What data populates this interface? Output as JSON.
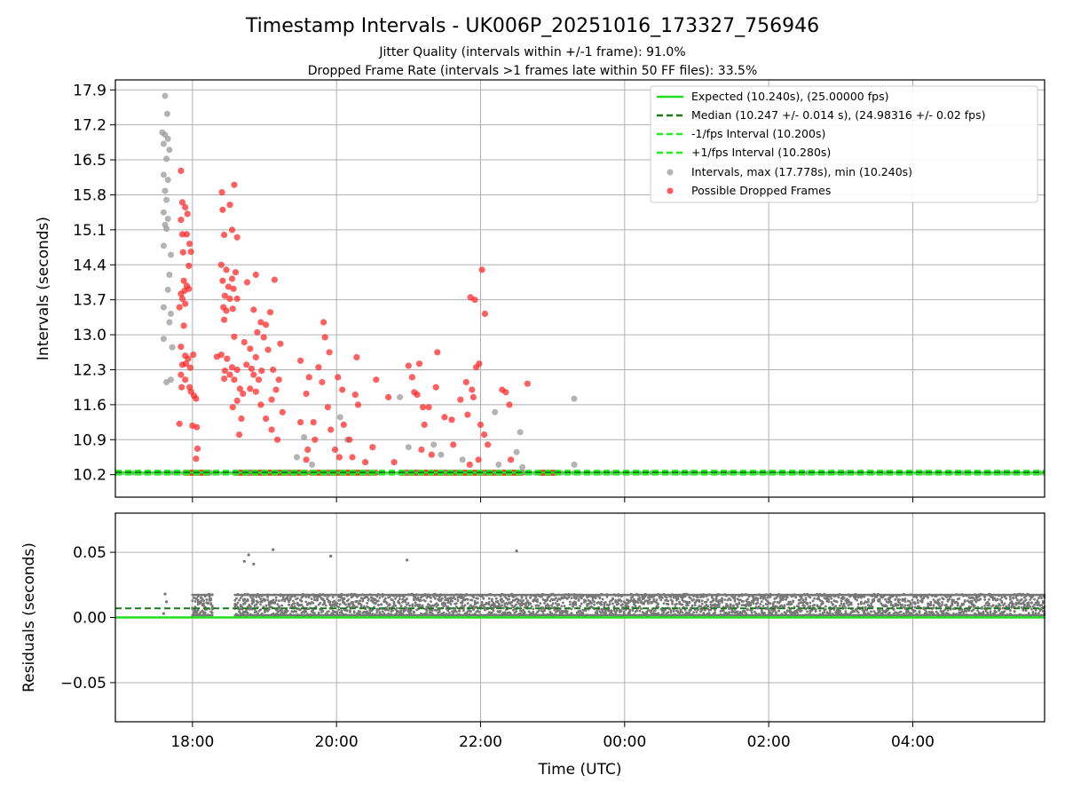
{
  "figure": {
    "title": "Timestamp Intervals - UK006P_20251016_173327_756946",
    "subtitle_line1": "Jitter Quality (intervals within +/-1 frame): 91.0%",
    "subtitle_line2": "Dropped Frame Rate (intervals >1 frames late within 50 FF files): 33.5%"
  },
  "colors": {
    "expected": "#22dd22",
    "median": "#1a7a1a",
    "interval_band": "#22ee22",
    "intervals_gray": "#9a9a9a",
    "dropped_red": "#ff2222",
    "residuals": "#777777",
    "grid": "#b0b0b0"
  },
  "chart_data": [
    {
      "type": "scatter",
      "xlabel": "",
      "ylabel": "Intervals (seconds)",
      "x_unit": "hours since 00:00 UTC of start day",
      "xlim": [
        16.93,
        29.83
      ],
      "ylim": [
        9.75,
        18.1
      ],
      "yticks": [
        "10.2",
        "10.9",
        "11.6",
        "12.3",
        "13.0",
        "13.7",
        "14.4",
        "15.1",
        "15.8",
        "16.5",
        "17.2",
        "17.9"
      ],
      "grid": true,
      "legend_position": "top-right",
      "legend": [
        "Expected (10.240s), (25.00000 fps)",
        "Median (10.247 +/- 0.014 s), (24.98316 +/- 0.02 fps)",
        "-1/fps Interval (10.200s)",
        "+1/fps Interval (10.280s)",
        "Intervals, max (17.778s), min (10.240s)",
        "Possible Dropped Frames"
      ],
      "reference_lines": {
        "expected": 10.24,
        "median": 10.247,
        "minus_one_fps": 10.2,
        "plus_one_fps": 10.28
      },
      "series": [
        {
          "name": "Intervals, max (17.778s), min (10.240s)",
          "points": [
            [
              17.62,
              17.78
            ],
            [
              17.65,
              17.42
            ],
            [
              17.58,
              17.05
            ],
            [
              17.62,
              17.0
            ],
            [
              17.66,
              16.92
            ],
            [
              17.6,
              16.82
            ],
            [
              17.68,
              16.7
            ],
            [
              17.64,
              16.52
            ],
            [
              17.6,
              16.2
            ],
            [
              17.66,
              16.1
            ],
            [
              17.62,
              15.88
            ],
            [
              17.64,
              15.7
            ],
            [
              17.6,
              15.45
            ],
            [
              17.66,
              15.32
            ],
            [
              17.62,
              15.2
            ],
            [
              17.64,
              15.12
            ],
            [
              17.6,
              14.78
            ],
            [
              17.7,
              14.6
            ],
            [
              17.68,
              14.2
            ],
            [
              17.66,
              13.9
            ],
            [
              17.6,
              13.55
            ],
            [
              17.7,
              13.42
            ],
            [
              17.68,
              13.25
            ],
            [
              17.6,
              12.92
            ],
            [
              17.72,
              12.75
            ],
            [
              17.7,
              12.1
            ],
            [
              17.64,
              12.05
            ],
            [
              19.45,
              10.55
            ],
            [
              19.55,
              10.95
            ],
            [
              19.66,
              10.4
            ],
            [
              20.05,
              11.35
            ],
            [
              20.15,
              10.9
            ],
            [
              20.88,
              11.75
            ],
            [
              21.0,
              10.75
            ],
            [
              21.35,
              10.8
            ],
            [
              21.45,
              10.6
            ],
            [
              21.75,
              10.5
            ],
            [
              22.2,
              11.45
            ],
            [
              22.25,
              10.4
            ],
            [
              22.55,
              11.05
            ],
            [
              22.5,
              10.65
            ],
            [
              22.58,
              10.35
            ],
            [
              23.3,
              11.72
            ],
            [
              23.3,
              10.4
            ]
          ]
        },
        {
          "name": "Possible Dropped Frames",
          "points": [
            [
              17.84,
              16.28
            ],
            [
              17.86,
              15.65
            ],
            [
              17.9,
              15.55
            ],
            [
              17.93,
              15.42
            ],
            [
              17.84,
              15.3
            ],
            [
              17.86,
              15.01
            ],
            [
              17.92,
              15.01
            ],
            [
              17.96,
              14.82
            ],
            [
              17.87,
              14.65
            ],
            [
              17.98,
              14.66
            ],
            [
              17.95,
              14.38
            ],
            [
              17.88,
              14.08
            ],
            [
              17.92,
              13.98
            ],
            [
              17.84,
              13.82
            ],
            [
              17.89,
              13.88
            ],
            [
              17.95,
              13.92
            ],
            [
              17.86,
              13.72
            ],
            [
              17.9,
              13.62
            ],
            [
              17.82,
              13.55
            ],
            [
              17.88,
              13.18
            ],
            [
              17.84,
              12.76
            ],
            [
              17.9,
              12.58
            ],
            [
              17.94,
              12.52
            ],
            [
              17.86,
              12.4
            ],
            [
              17.91,
              12.42
            ],
            [
              17.84,
              12.2
            ],
            [
              17.97,
              12.34
            ],
            [
              17.9,
              12.1
            ],
            [
              17.85,
              11.95
            ],
            [
              17.98,
              11.86
            ],
            [
              18.02,
              11.78
            ],
            [
              17.96,
              11.95
            ],
            [
              18.05,
              11.72
            ],
            [
              18.01,
              12.6
            ],
            [
              17.82,
              11.22
            ],
            [
              18.0,
              11.18
            ],
            [
              18.06,
              11.15
            ],
            [
              18.07,
              10.72
            ],
            [
              18.05,
              10.52
            ],
            [
              18.34,
              12.56
            ],
            [
              18.41,
              15.85
            ],
            [
              18.58,
              16.0
            ],
            [
              18.52,
              15.6
            ],
            [
              18.42,
              15.5
            ],
            [
              18.55,
              15.1
            ],
            [
              18.44,
              15.0
            ],
            [
              18.62,
              14.95
            ],
            [
              18.4,
              14.4
            ],
            [
              18.47,
              14.3
            ],
            [
              18.6,
              14.25
            ],
            [
              18.55,
              14.12
            ],
            [
              18.42,
              14.08
            ],
            [
              18.5,
              13.96
            ],
            [
              18.57,
              13.92
            ],
            [
              18.45,
              13.78
            ],
            [
              18.62,
              13.72
            ],
            [
              18.52,
              13.72
            ],
            [
              18.43,
              13.55
            ],
            [
              18.56,
              13.52
            ],
            [
              18.47,
              13.48
            ],
            [
              18.44,
              13.3
            ],
            [
              18.58,
              12.96
            ],
            [
              18.4,
              12.6
            ],
            [
              18.48,
              12.52
            ],
            [
              18.55,
              12.35
            ],
            [
              18.45,
              12.28
            ],
            [
              18.62,
              12.3
            ],
            [
              18.52,
              12.2
            ],
            [
              18.44,
              12.12
            ],
            [
              18.58,
              12.1
            ],
            [
              18.66,
              11.92
            ],
            [
              18.7,
              11.82
            ],
            [
              18.62,
              11.68
            ],
            [
              18.56,
              11.55
            ],
            [
              18.68,
              11.32
            ],
            [
              18.65,
              11.0
            ],
            [
              18.72,
              12.85
            ],
            [
              18.8,
              12.72
            ],
            [
              18.88,
              12.55
            ],
            [
              18.75,
              12.4
            ],
            [
              18.82,
              12.32
            ],
            [
              18.85,
              12.2
            ],
            [
              18.92,
              12.1
            ],
            [
              18.96,
              12.28
            ],
            [
              18.8,
              11.92
            ],
            [
              18.88,
              11.86
            ],
            [
              18.95,
              11.6
            ],
            [
              18.76,
              14.05
            ],
            [
              18.88,
              14.2
            ],
            [
              18.9,
              13.05
            ],
            [
              18.99,
              12.95
            ],
            [
              19.05,
              12.7
            ],
            [
              19.12,
              12.3
            ],
            [
              19.2,
              12.1
            ],
            [
              19.16,
              11.9
            ],
            [
              19.1,
              11.7
            ],
            [
              19.02,
              11.32
            ],
            [
              19.1,
              11.1
            ],
            [
              19.18,
              10.9
            ],
            [
              19.14,
              14.1
            ],
            [
              18.85,
              13.5
            ],
            [
              18.95,
              13.25
            ],
            [
              19.02,
              13.2
            ],
            [
              19.08,
              13.45
            ],
            [
              19.22,
              12.82
            ],
            [
              19.25,
              11.45
            ],
            [
              19.5,
              12.48
            ],
            [
              19.58,
              11.82
            ],
            [
              19.62,
              12.15
            ],
            [
              19.5,
              11.25
            ],
            [
              19.68,
              11.25
            ],
            [
              19.7,
              10.9
            ],
            [
              19.6,
              10.7
            ],
            [
              19.58,
              10.5
            ],
            [
              19.75,
              12.35
            ],
            [
              19.8,
              12.05
            ],
            [
              19.84,
              12.95
            ],
            [
              19.82,
              13.25
            ],
            [
              19.9,
              12.65
            ],
            [
              19.88,
              11.55
            ],
            [
              19.92,
              11.1
            ],
            [
              19.98,
              10.7
            ],
            [
              20.04,
              10.55
            ],
            [
              20.1,
              11.2
            ],
            [
              20.02,
              12.15
            ],
            [
              20.08,
              11.9
            ],
            [
              20.18,
              10.9
            ],
            [
              20.22,
              10.55
            ],
            [
              20.3,
              11.6
            ],
            [
              20.28,
              12.55
            ],
            [
              20.26,
              11.8
            ],
            [
              20.4,
              10.45
            ],
            [
              20.5,
              10.75
            ],
            [
              20.55,
              12.1
            ],
            [
              20.72,
              11.75
            ],
            [
              20.8,
              10.45
            ],
            [
              21.0,
              12.38
            ],
            [
              21.05,
              12.15
            ],
            [
              21.08,
              11.85
            ],
            [
              21.15,
              12.42
            ],
            [
              21.12,
              11.8
            ],
            [
              21.2,
              11.55
            ],
            [
              21.22,
              11.2
            ],
            [
              21.18,
              10.7
            ],
            [
              21.28,
              11.55
            ],
            [
              21.32,
              10.6
            ],
            [
              21.4,
              12.65
            ],
            [
              21.38,
              11.95
            ],
            [
              21.5,
              11.35
            ],
            [
              21.6,
              11.3
            ],
            [
              21.62,
              10.8
            ],
            [
              21.72,
              11.7
            ],
            [
              21.8,
              12.05
            ],
            [
              21.82,
              11.4
            ],
            [
              21.85,
              10.4
            ],
            [
              21.88,
              11.9
            ],
            [
              21.9,
              11.75
            ],
            [
              21.98,
              12.42
            ],
            [
              22.02,
              14.3
            ],
            [
              22.06,
              13.42
            ],
            [
              21.92,
              13.7
            ],
            [
              21.86,
              13.75
            ],
            [
              21.94,
              12.35
            ],
            [
              22.0,
              11.2
            ],
            [
              22.05,
              11.0
            ],
            [
              22.1,
              10.8
            ],
            [
              21.97,
              10.5
            ],
            [
              22.3,
              11.9
            ],
            [
              22.35,
              11.85
            ],
            [
              22.4,
              11.6
            ],
            [
              22.42,
              10.5
            ],
            [
              22.65,
              12.02
            ]
          ]
        },
        {
          "name": "Dense points along expected interval",
          "x_ranges": [
            [
              17.9,
              18.25
            ],
            [
              18.6,
              19.6
            ],
            [
              19.65,
              20.55
            ],
            [
              20.9,
              22.6
            ],
            [
              22.82,
              23.05
            ]
          ],
          "y": 10.24
        }
      ]
    },
    {
      "type": "scatter",
      "xlabel": "Time (UTC)",
      "ylabel": "Residuals (seconds)",
      "xlim": [
        16.93,
        29.83
      ],
      "ylim": [
        -0.08,
        0.08
      ],
      "xticks": [
        "18:00",
        "20:00",
        "22:00",
        "00:00",
        "02:00",
        "04:00"
      ],
      "xtick_values": [
        18,
        20,
        22,
        24,
        26,
        28
      ],
      "yticks": [
        "0.05",
        "0.00",
        "−0.05"
      ],
      "ytick_values": [
        0.05,
        0.0,
        -0.05
      ],
      "grid": true,
      "reference_lines": {
        "expected": 0.0,
        "median": 0.007
      },
      "series": [
        {
          "name": "Residual outliers",
          "points": [
            [
              17.62,
              0.018
            ],
            [
              17.64,
              0.012
            ],
            [
              17.6,
              0.003
            ],
            [
              18.72,
              0.043
            ],
            [
              18.78,
              0.048
            ],
            [
              18.85,
              0.041
            ],
            [
              19.12,
              0.052
            ],
            [
              19.92,
              0.047
            ],
            [
              20.98,
              0.044
            ],
            [
              22.5,
              0.051
            ]
          ]
        },
        {
          "name": "Residual band",
          "x_range": [
            18.0,
            29.83
          ],
          "y_range": [
            0.001,
            0.018
          ]
        }
      ]
    }
  ]
}
